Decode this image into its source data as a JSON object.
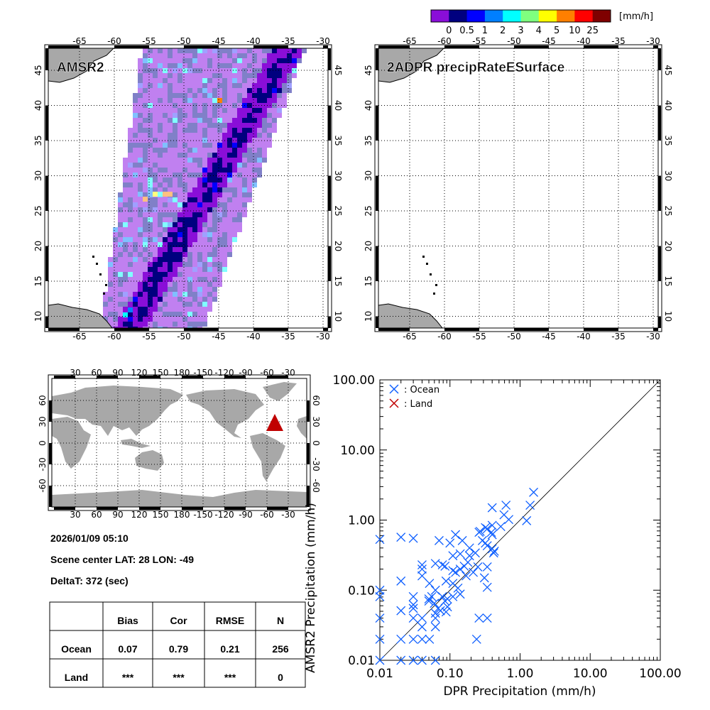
{
  "colorbar": {
    "colors": [
      "#8a0ed8",
      "#00007f",
      "#0000ff",
      "#007fff",
      "#00ffff",
      "#7fff7f",
      "#ffff00",
      "#ff7f00",
      "#ff0000",
      "#7f0000"
    ],
    "labels": [
      "0",
      "0.5",
      "1",
      "2",
      "3",
      "4",
      "5",
      "10",
      "25"
    ],
    "unit": "[mm/h]"
  },
  "panels": {
    "amsr2": {
      "title": "AMSR2"
    },
    "dpr": {
      "title": "2ADPR precipRateESurface"
    },
    "lon_labels": [
      "-65",
      "-60",
      "-55",
      "-50",
      "-45",
      "-40",
      "-35",
      "-30"
    ],
    "lat_labels": [
      "45",
      "40",
      "35",
      "30",
      "25",
      "20",
      "15",
      "10"
    ],
    "colors": {
      "land": "#a8a8a8",
      "light": "#c080f0",
      "gray": "#8080c8"
    }
  },
  "world_map": {
    "lon_labels": [
      "30",
      "60",
      "90",
      "120",
      "150",
      "180",
      "-150",
      "-120",
      "-90",
      "-60",
      "-30"
    ],
    "lat_labels": [
      "60",
      "30",
      "0",
      "-30",
      "-60"
    ],
    "marker": {
      "lat": 28,
      "lon": -49,
      "color": "#c00000"
    }
  },
  "info": {
    "datetime": "2026/01/09 05:10",
    "scene_center": "Scene center LAT: 28  LON: -49",
    "delta_t": "DeltaT:  372 (sec)"
  },
  "stats_table": {
    "headers": [
      "",
      "Bias",
      "Cor",
      "RMSE",
      "N"
    ],
    "rows": [
      [
        "Ocean",
        "0.07",
        "0.79",
        "0.21",
        "256"
      ],
      [
        "Land",
        "***",
        "***",
        "***",
        "0"
      ]
    ]
  },
  "chart_data": {
    "type": "scatter",
    "xlabel": "DPR Precipitation (mm/h)",
    "ylabel": "AMSR2 Precipitation (mm/h)",
    "xscale": "log",
    "yscale": "log",
    "xlim": [
      0.01,
      100
    ],
    "ylim": [
      0.01,
      100
    ],
    "x_tick_labels": [
      "0.01",
      "0.10",
      "1.00",
      "10.00",
      "100.00"
    ],
    "y_tick_labels": [
      "0.01",
      "0.10",
      "1.00",
      "10.00",
      "100.00"
    ],
    "reference_line": "1:1",
    "legend": {
      "placement": "top-left",
      "entries": [
        {
          "label": ": Ocean",
          "color": "#1060ff"
        },
        {
          "label": ": Land",
          "color": "#c00000"
        }
      ]
    },
    "series": [
      {
        "name": "Ocean",
        "color": "#1060ff",
        "points": [
          [
            0.01,
            0.53
          ],
          [
            0.02,
            0.57
          ],
          [
            0.03,
            0.55
          ],
          [
            0.07,
            0.51
          ],
          [
            0.1,
            0.47
          ],
          [
            0.12,
            0.62
          ],
          [
            0.15,
            0.51
          ],
          [
            0.27,
            0.69
          ],
          [
            0.26,
            0.67
          ],
          [
            0.32,
            0.78
          ],
          [
            0.34,
            0.75
          ],
          [
            0.4,
            0.84
          ],
          [
            0.53,
            0.81
          ],
          [
            0.69,
            1.02
          ],
          [
            1.24,
            0.98
          ],
          [
            0.29,
            0.51
          ],
          [
            0.32,
            0.47
          ],
          [
            0.34,
            0.43
          ],
          [
            0.4,
            0.62
          ],
          [
            0.39,
            0.67
          ],
          [
            0.19,
            0.4
          ],
          [
            0.23,
            0.34
          ],
          [
            0.11,
            0.31
          ],
          [
            0.14,
            0.33
          ],
          [
            0.19,
            0.31
          ],
          [
            0.18,
            0.25
          ],
          [
            0.16,
            0.22
          ],
          [
            0.085,
            0.22
          ],
          [
            0.078,
            0.23
          ],
          [
            0.062,
            0.24
          ],
          [
            0.04,
            0.23
          ],
          [
            0.04,
            0.2
          ],
          [
            0.04,
            0.16
          ],
          [
            0.11,
            0.19
          ],
          [
            0.12,
            0.18
          ],
          [
            0.14,
            0.2
          ],
          [
            0.17,
            0.16
          ],
          [
            0.215,
            0.18
          ],
          [
            0.25,
            0.215
          ],
          [
            0.34,
            0.215
          ],
          [
            0.31,
            0.15
          ],
          [
            0.34,
            0.11
          ],
          [
            0.02,
            0.135
          ],
          [
            0.051,
            0.125
          ],
          [
            0.062,
            0.1
          ],
          [
            0.088,
            0.135
          ],
          [
            0.11,
            0.125
          ],
          [
            0.13,
            0.107
          ],
          [
            0.14,
            0.088
          ],
          [
            0.11,
            0.081
          ],
          [
            0.092,
            0.075
          ],
          [
            0.085,
            0.07
          ],
          [
            0.078,
            0.081
          ],
          [
            0.055,
            0.081
          ],
          [
            0.05,
            0.075
          ],
          [
            0.05,
            0.07
          ],
          [
            0.06,
            0.065
          ],
          [
            0.068,
            0.055
          ],
          [
            0.073,
            0.051
          ],
          [
            0.092,
            0.058
          ],
          [
            0.088,
            0.049
          ],
          [
            0.03,
            0.081
          ],
          [
            0.03,
            0.062
          ],
          [
            0.03,
            0.055
          ],
          [
            0.03,
            0.04
          ],
          [
            0.02,
            0.051
          ],
          [
            0.04,
            0.04
          ],
          [
            0.04,
            0.03
          ],
          [
            0.062,
            0.047
          ],
          [
            0.062,
            0.04
          ],
          [
            0.062,
            0.03
          ],
          [
            0.26,
            0.04
          ],
          [
            0.34,
            0.04
          ],
          [
            0.24,
            0.02
          ],
          [
            0.01,
            0.1
          ],
          [
            0.01,
            0.081
          ],
          [
            0.01,
            0.04
          ],
          [
            0.01,
            0.02
          ],
          [
            0.02,
            0.02
          ],
          [
            0.03,
            0.02
          ],
          [
            0.04,
            0.02
          ],
          [
            0.051,
            0.02
          ],
          [
            0.01,
            0.01
          ],
          [
            0.02,
            0.01
          ],
          [
            0.03,
            0.01
          ],
          [
            0.04,
            0.01
          ],
          [
            0.062,
            0.01
          ],
          [
            0.43,
            0.36
          ],
          [
            0.4,
            0.39
          ],
          [
            0.42,
            0.34
          ],
          [
            1.56,
            2.49
          ],
          [
            1.39,
            1.63
          ],
          [
            0.4,
            1.5
          ],
          [
            0.63,
            1.63
          ],
          [
            0.59,
            1.19
          ]
        ]
      },
      {
        "name": "Land",
        "color": "#c00000",
        "points": []
      }
    ]
  }
}
